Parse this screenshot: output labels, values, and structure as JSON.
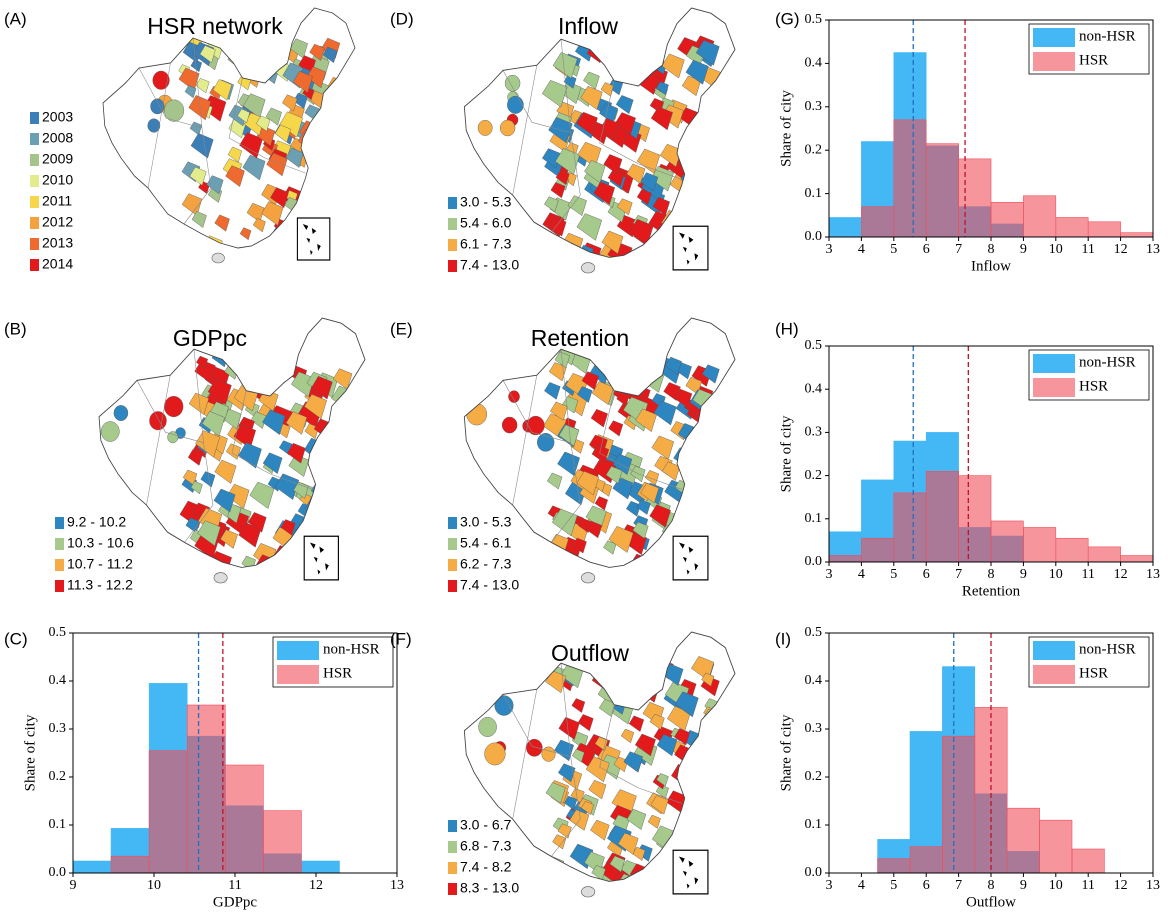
{
  "chart_data": [
    {
      "type": "map",
      "panel": "(A)",
      "title": "HSR network",
      "legend": [
        {
          "label": "2003",
          "color": "#3b7fb6"
        },
        {
          "label": "2008",
          "color": "#6b9fb4"
        },
        {
          "label": "2009",
          "color": "#a5c48c"
        },
        {
          "label": "2010",
          "color": "#e3ec8c"
        },
        {
          "label": "2011",
          "color": "#f6d64a"
        },
        {
          "label": "2012",
          "color": "#f3a23f"
        },
        {
          "label": "2013",
          "color": "#ee6a2f"
        },
        {
          "label": "2014",
          "color": "#e31a1c"
        }
      ]
    },
    {
      "type": "map",
      "panel": "(D)",
      "title": "Inflow",
      "legend": [
        {
          "label": "3.0 - 5.3",
          "color": "#2e86c1"
        },
        {
          "label": "5.4 - 6.0",
          "color": "#a6c98c"
        },
        {
          "label": "6.1 - 7.3",
          "color": "#f5ac45"
        },
        {
          "label": "7.4 - 13.0",
          "color": "#e31a1c"
        }
      ]
    },
    {
      "type": "histogram",
      "panel": "(G)",
      "xlabel": "Inflow",
      "ylabel": "Share of city",
      "bins": [
        3,
        4,
        5,
        6,
        7,
        8,
        9,
        10,
        11,
        12,
        13
      ],
      "series": [
        {
          "name": "non-HSR",
          "color": "#44b8f4",
          "mean": 5.6,
          "mean_color": "#1f6fc0",
          "values": [
            0.045,
            0.22,
            0.425,
            0.21,
            0.07,
            0.03,
            0,
            0,
            0,
            0
          ]
        },
        {
          "name": "HSR",
          "color": "#f04e5a",
          "mean": 7.2,
          "mean_color": "#c0102a",
          "values": [
            0,
            0.07,
            0.27,
            0.215,
            0.18,
            0.08,
            0.095,
            0.045,
            0.035,
            0.01
          ]
        }
      ],
      "xlim": [
        3,
        13
      ],
      "xticks": [
        3,
        4,
        5,
        6,
        7,
        8,
        9,
        10,
        11,
        12,
        13
      ],
      "ylim": [
        0,
        0.5
      ],
      "yticks": [
        {
          "value": 0,
          "label": "0.0"
        },
        0.1,
        0.2,
        0.3,
        0.4,
        0.5
      ]
    },
    {
      "type": "map",
      "panel": "(B)",
      "title": "GDPpc",
      "legend": [
        {
          "label": "9.2 - 10.2",
          "color": "#2e86c1"
        },
        {
          "label": "10.3 - 10.6",
          "color": "#a6c98c"
        },
        {
          "label": "10.7 - 11.2",
          "color": "#f5ac45"
        },
        {
          "label": "11.3 - 12.2",
          "color": "#e31a1c"
        }
      ]
    },
    {
      "type": "map",
      "panel": "(E)",
      "title": "Retention",
      "legend": [
        {
          "label": "3.0 - 5.3",
          "color": "#2e86c1"
        },
        {
          "label": "5.4 - 6.1",
          "color": "#a6c98c"
        },
        {
          "label": "6.2 - 7.3",
          "color": "#f5ac45"
        },
        {
          "label": "7.4 - 13.0",
          "color": "#e31a1c"
        }
      ]
    },
    {
      "type": "histogram",
      "panel": "(H)",
      "xlabel": "Retention",
      "ylabel": "Share of city",
      "bins": [
        3,
        4,
        5,
        6,
        7,
        8,
        9,
        10,
        11,
        12,
        13
      ],
      "series": [
        {
          "name": "non-HSR",
          "color": "#44b8f4",
          "mean": 5.6,
          "mean_color": "#1f6fc0",
          "values": [
            0.07,
            0.19,
            0.28,
            0.3,
            0.08,
            0.06,
            0,
            0,
            0,
            0
          ]
        },
        {
          "name": "HSR",
          "color": "#f04e5a",
          "mean": 7.3,
          "mean_color": "#c0102a",
          "values": [
            0.015,
            0.055,
            0.16,
            0.21,
            0.2,
            0.095,
            0.08,
            0.055,
            0.035,
            0.015
          ]
        }
      ],
      "xlim": [
        3,
        13
      ],
      "xticks": [
        3,
        4,
        5,
        6,
        7,
        8,
        9,
        10,
        11,
        12,
        13
      ],
      "ylim": [
        0,
        0.5
      ],
      "yticks": [
        {
          "value": 0,
          "label": "0.0"
        },
        0.1,
        0.2,
        0.3,
        0.4,
        0.5
      ]
    },
    {
      "type": "histogram",
      "panel": "(C)",
      "xlabel": "GDPpc",
      "ylabel": "Share of city",
      "bins": [
        9,
        9.47,
        9.94,
        10.41,
        10.88,
        11.35,
        11.82,
        12.29
      ],
      "series": [
        {
          "name": "non-HSR",
          "color": "#44b8f4",
          "mean": 10.55,
          "mean_color": "#1f6fc0",
          "values": [
            0.025,
            0.093,
            0.395,
            0.285,
            0.14,
            0.04,
            0.025
          ]
        },
        {
          "name": "HSR",
          "color": "#f04e5a",
          "mean": 10.85,
          "mean_color": "#c0102a",
          "values": [
            0,
            0.035,
            0.255,
            0.35,
            0.225,
            0.13,
            0
          ]
        }
      ],
      "xlim": [
        9,
        13
      ],
      "xticks": [
        9,
        10,
        11,
        12,
        13
      ],
      "ylim": [
        0,
        0.5
      ],
      "yticks": [
        {
          "value": 0,
          "label": "0.0"
        },
        0.1,
        0.2,
        0.3,
        0.4,
        0.5
      ]
    },
    {
      "type": "map",
      "panel": "(F)",
      "title": "Outflow",
      "legend": [
        {
          "label": "3.0 - 6.7",
          "color": "#2e86c1"
        },
        {
          "label": "6.8 - 7.3",
          "color": "#a6c98c"
        },
        {
          "label": "7.4 - 8.2",
          "color": "#f5ac45"
        },
        {
          "label": "8.3 - 13.0",
          "color": "#e31a1c"
        }
      ]
    },
    {
      "type": "histogram",
      "panel": "(I)",
      "xlabel": "Outflow",
      "ylabel": "Share of city",
      "bins": [
        4.5,
        5.5,
        6.5,
        7.5,
        8.5,
        9.5,
        10.5,
        11.5
      ],
      "series": [
        {
          "name": "non-HSR",
          "color": "#44b8f4",
          "mean": 6.85,
          "mean_color": "#1f6fc0",
          "values": [
            0.07,
            0.295,
            0.43,
            0.165,
            0.045,
            0,
            0
          ]
        },
        {
          "name": "HSR",
          "color": "#f04e5a",
          "mean": 8.0,
          "mean_color": "#c0102a",
          "values": [
            0.03,
            0.055,
            0.285,
            0.345,
            0.135,
            0.11,
            0.05
          ]
        }
      ],
      "xlim": [
        3,
        13
      ],
      "xticks": [
        3,
        4,
        5,
        6,
        7,
        8,
        9,
        10,
        11,
        12,
        13
      ],
      "ylim": [
        0,
        0.5
      ],
      "yticks": [
        {
          "value": 0,
          "label": "0.0"
        },
        0.1,
        0.2,
        0.3,
        0.4,
        0.5
      ]
    }
  ]
}
